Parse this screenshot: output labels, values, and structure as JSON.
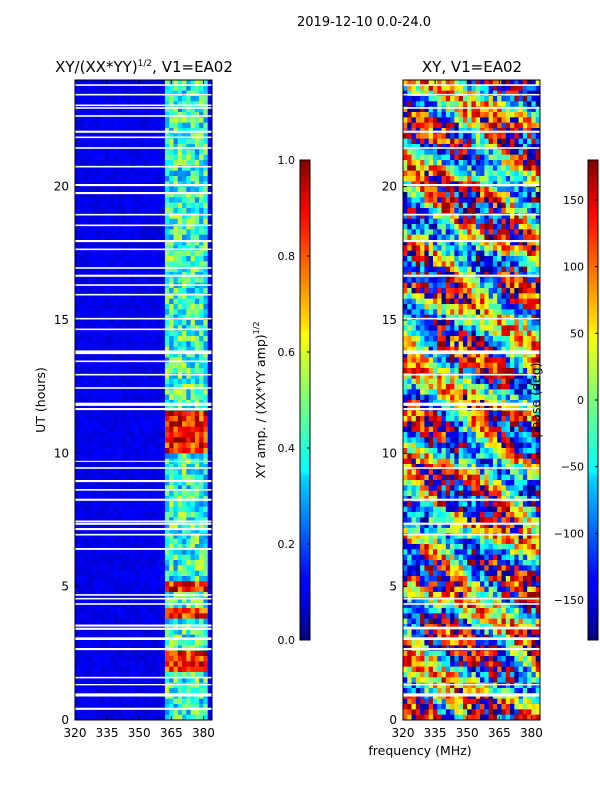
{
  "figure": {
    "suptitle": "2019-12-10 0.0-24.0",
    "shared_xlabel": "frequency (MHz)"
  },
  "chart_data": [
    {
      "type": "heatmap",
      "title": "XY/(XX*YY)",
      "title_exponent": "1/2",
      "title_suffix": ", V1=EA02",
      "xlabel": "",
      "ylabel": "UT (hours)",
      "xlim": [
        320,
        384
      ],
      "ylim": [
        0,
        24
      ],
      "xticks": [
        320,
        335,
        350,
        365,
        380
      ],
      "yticks": [
        0,
        5,
        10,
        15,
        20
      ],
      "colormap": "jet",
      "colorbar": {
        "label": "XY amp. / (XX*YY amp)",
        "label_exponent": "1/2",
        "range": [
          0.0,
          1.0
        ],
        "ticks": [
          "0.0",
          "0.2",
          "0.4",
          "0.6",
          "0.8",
          "1.0"
        ]
      },
      "description_values": {
        "background_level": 0.08,
        "band_lo_mhz": 362,
        "band_hi_mhz": 382,
        "band_level": 0.42,
        "high_rows_ut": [
          [
            1.9,
            2.5
          ],
          [
            3.7,
            4.1
          ],
          [
            4.9,
            5.2
          ],
          [
            10.0,
            11.6
          ]
        ]
      },
      "missing_rows_ut": [
        [
          0.38,
          0.46
        ],
        [
          0.88,
          1.0
        ],
        [
          1.3,
          1.35
        ],
        [
          1.56,
          1.62
        ],
        [
          2.62,
          2.7
        ],
        [
          3.0,
          3.1
        ],
        [
          3.38,
          3.46
        ],
        [
          3.5,
          3.58
        ],
        [
          4.32,
          4.38
        ],
        [
          4.52,
          4.58
        ],
        [
          4.66,
          4.72
        ],
        [
          6.38,
          6.45
        ],
        [
          6.92,
          6.98
        ],
        [
          7.12,
          7.2
        ],
        [
          7.32,
          7.4
        ],
        [
          7.42,
          7.48
        ],
        [
          8.22,
          8.3
        ],
        [
          8.6,
          8.66
        ],
        [
          8.92,
          9.0
        ],
        [
          9.42,
          9.48
        ],
        [
          9.68,
          9.72
        ],
        [
          11.62,
          11.7
        ],
        [
          11.78,
          11.9
        ],
        [
          12.42,
          12.48
        ],
        [
          12.92,
          12.98
        ],
        [
          13.42,
          13.48
        ],
        [
          13.72,
          13.86
        ],
        [
          14.62,
          14.68
        ],
        [
          15.02,
          15.08
        ],
        [
          15.92,
          15.98
        ],
        [
          16.28,
          16.34
        ],
        [
          16.62,
          16.7
        ],
        [
          16.92,
          16.98
        ],
        [
          17.62,
          17.68
        ],
        [
          17.92,
          18.0
        ],
        [
          18.52,
          18.58
        ],
        [
          18.92,
          18.98
        ],
        [
          19.72,
          19.8
        ],
        [
          20.02,
          20.1
        ],
        [
          20.72,
          20.78
        ],
        [
          21.42,
          21.48
        ],
        [
          21.82,
          21.88
        ],
        [
          22.02,
          22.1
        ],
        [
          22.62,
          22.68
        ],
        [
          22.92,
          22.98
        ],
        [
          23.02,
          23.08
        ],
        [
          23.42,
          23.48
        ],
        [
          23.78,
          23.84
        ]
      ]
    },
    {
      "type": "heatmap",
      "title": "XY, V1=EA02",
      "xlabel": "",
      "ylabel": "",
      "xlim": [
        320,
        384
      ],
      "ylim": [
        0,
        24
      ],
      "xticks": [
        320,
        335,
        350,
        365,
        380
      ],
      "yticks": [
        0,
        5,
        10,
        15,
        20
      ],
      "colormap": "jet",
      "colorbar": {
        "label": "phase (deg)",
        "range": [
          -180,
          180
        ],
        "ticks": [
          "−150",
          "−100",
          "−50",
          "0",
          "50",
          "100",
          "150"
        ],
        "tick_values": [
          -150,
          -100,
          -50,
          0,
          50,
          100,
          150
        ]
      },
      "description_values": {
        "phase_range_deg": [
          -180,
          180
        ]
      },
      "missing_rows_ut": [
        [
          0.88,
          1.0
        ],
        [
          1.3,
          1.35
        ],
        [
          2.62,
          2.7
        ],
        [
          3.0,
          3.1
        ],
        [
          3.4,
          3.5
        ],
        [
          4.32,
          4.38
        ],
        [
          4.52,
          4.58
        ],
        [
          6.92,
          6.98
        ],
        [
          7.32,
          7.4
        ],
        [
          8.22,
          8.3
        ],
        [
          9.42,
          9.48
        ],
        [
          11.62,
          11.7
        ],
        [
          11.78,
          11.9
        ],
        [
          12.92,
          12.98
        ],
        [
          13.72,
          13.86
        ],
        [
          15.02,
          15.08
        ],
        [
          16.62,
          16.7
        ],
        [
          17.92,
          18.0
        ],
        [
          18.92,
          18.98
        ],
        [
          20.02,
          20.1
        ],
        [
          21.42,
          21.48
        ],
        [
          22.02,
          22.1
        ],
        [
          22.92,
          22.98
        ],
        [
          23.42,
          23.48
        ],
        [
          23.78,
          23.84
        ]
      ]
    }
  ]
}
